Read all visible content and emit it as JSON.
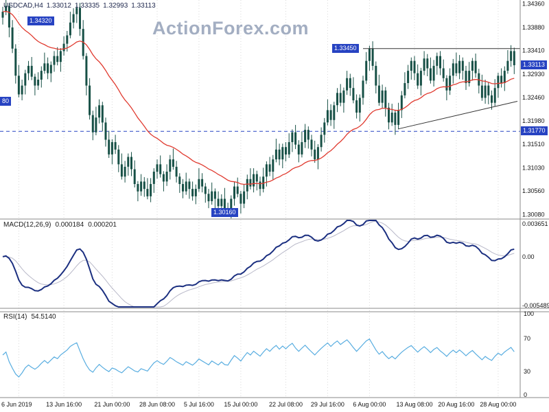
{
  "header": {
    "symbol": "USDCAD,H4",
    "open": "1.33012",
    "high": "1.33335",
    "low": "1.32993",
    "close": "1.33113"
  },
  "watermark": "ActionForex.com",
  "price_axis": {
    "tick_labels": [
      "1.34360",
      "1.33880",
      "1.33410",
      "1.32930",
      "1.32460",
      "1.31980",
      "1.31510",
      "1.31030",
      "1.30560",
      "1.30080"
    ],
    "current_badge": "1.33113",
    "support_badge": "1.31770",
    "left_partial_badge": "80"
  },
  "chart_labels": {
    "high_left": "1.34320",
    "resistance": "1.33450",
    "low": "1.30160"
  },
  "macd_panel": {
    "label": "MACD(12,26,9)",
    "value_main": "0.000184",
    "value_signal": "0.000201",
    "tick_labels": [
      "0.003651",
      "0.00",
      "-0.005489"
    ]
  },
  "rsi_panel": {
    "label": "RSI(14)",
    "value": "54.5140",
    "tick_labels": [
      "100",
      "70",
      "30",
      "0"
    ]
  },
  "x_axis": {
    "labels": [
      "6 Jun 2019",
      "13 Jun 16:00",
      "21 Jun 00:00",
      "28 Jun 08:00",
      "5 Jul 16:00",
      "15 Jul 00:00",
      "22 Jul 08:00",
      "29 Jul 16:00",
      "6 Aug 00:00",
      "13 Aug 08:00",
      "20 Aug 16:00",
      "28 Aug 00:00"
    ],
    "tick_indices": [
      5,
      19,
      34,
      48,
      61,
      74,
      88,
      101,
      114,
      128,
      141,
      154
    ]
  },
  "colors": {
    "candle": "#175046",
    "ma_line": "#e03a2f",
    "macd_line": "#1b2f80",
    "macd_signal": "#b8b8c8",
    "rsi_line": "#58ade0",
    "badge_bg": "#2743c2",
    "grid": "#d8d8d8",
    "border": "#8a8a8a",
    "watermark": "#a3aec2",
    "trend_line": "#333333"
  },
  "chart_data": {
    "type": "candlestick",
    "symbol": "USDCAD",
    "timeframe": "H4",
    "price_range": [
      1.3003,
      1.3441
    ],
    "first_open": 1.3408,
    "closes": [
      1.342,
      1.3432,
      1.3388,
      1.3345,
      1.329,
      1.3252,
      1.327,
      1.3295,
      1.331,
      1.3288,
      1.327,
      1.3282,
      1.33,
      1.3315,
      1.3295,
      1.3312,
      1.333,
      1.3318,
      1.334,
      1.3355,
      1.3372,
      1.3398,
      1.3415,
      1.3428,
      1.3385,
      1.333,
      1.327,
      1.321,
      1.3175,
      1.3205,
      1.323,
      1.3195,
      1.316,
      1.313,
      1.3155,
      1.314,
      1.311,
      1.3085,
      1.3105,
      1.3125,
      1.31,
      1.307,
      1.3055,
      1.3075,
      1.306,
      1.3045,
      1.307,
      1.3095,
      1.311,
      1.309,
      1.3075,
      1.3095,
      1.312,
      1.3105,
      1.3085,
      1.307,
      1.3055,
      1.3075,
      1.306,
      1.3045,
      1.306,
      1.308,
      1.3065,
      1.305,
      1.3035,
      1.3055,
      1.304,
      1.3025,
      1.304,
      1.302,
      1.3016,
      1.304,
      1.3065,
      1.305,
      1.303,
      1.3055,
      1.308,
      1.3065,
      1.309,
      1.3075,
      1.306,
      1.3085,
      1.311,
      1.3095,
      1.312,
      1.314,
      1.312,
      1.3145,
      1.313,
      1.3155,
      1.3175,
      1.315,
      1.313,
      1.3155,
      1.318,
      1.316,
      1.314,
      1.312,
      1.3145,
      1.317,
      1.3195,
      1.322,
      1.32,
      1.323,
      1.3255,
      1.3235,
      1.326,
      1.3285,
      1.3265,
      1.324,
      1.3215,
      1.3245,
      1.328,
      1.332,
      1.3345,
      1.331,
      1.327,
      1.3235,
      1.326,
      1.3225,
      1.3195,
      1.3215,
      1.319,
      1.322,
      1.325,
      1.3275,
      1.33,
      1.332,
      1.3295,
      1.327,
      1.33,
      1.3325,
      1.3305,
      1.328,
      1.331,
      1.333,
      1.3305,
      1.3285,
      1.326,
      1.329,
      1.3315,
      1.3295,
      1.332,
      1.33,
      1.3275,
      1.33,
      1.332,
      1.3295,
      1.327,
      1.3245,
      1.327,
      1.325,
      1.3235,
      1.3265,
      1.329,
      1.3275,
      1.33,
      1.332,
      1.334,
      1.33113
    ],
    "wick_up_pattern": [
      0.001,
      0.0018,
      0.0006,
      0.0015,
      0.0009,
      0.0022,
      0.0012,
      0.0007
    ],
    "wick_down_pattern": [
      0.0014,
      0.0007,
      0.002,
      0.0009,
      0.0016,
      0.0006,
      0.0012,
      0.0018
    ],
    "ma_overlay": {
      "type": "EMA",
      "period": 30
    },
    "levels": {
      "support_dashed": 1.3177,
      "resistance": 1.3345,
      "low_label_price": 1.3016,
      "high_label_price": 1.3432,
      "left_partial_price": 1.3238,
      "current_price": 1.33113
    },
    "resistance_from_index": 112,
    "trend_line": {
      "from_index": 123,
      "from_price": 1.3182,
      "to_index": 160,
      "to_price": 1.3238
    },
    "macd": {
      "fast": 12,
      "slow": 26,
      "signal": 9,
      "range": [
        -0.005489,
        0.003651
      ]
    },
    "rsi": {
      "period": 14,
      "range": [
        0,
        100
      ]
    }
  }
}
